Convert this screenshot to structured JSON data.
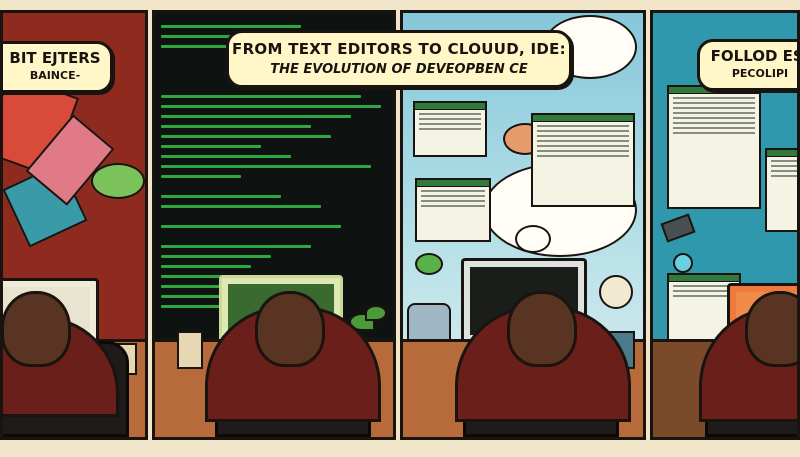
{
  "captions": {
    "left_line1": "BIT EJTERS",
    "left_line2": "BAINCE-",
    "center_line1": "FROM TEXT EDITORS TO CLOUUD, IDE:",
    "center_line2": "THE EVOLUTION OF DEVEOPBEN CE",
    "right_line1": "FOLLOD ESI",
    "right_line2": "PECOLIPI"
  },
  "colors": {
    "panel1_bg": "#8e2a1e",
    "panel2_bg": "#0e1210",
    "code_green": "#35c24a",
    "panel4_bg": "#2f98ad",
    "caption_bg": "#fff7c7",
    "desk": "#b86b3a"
  }
}
